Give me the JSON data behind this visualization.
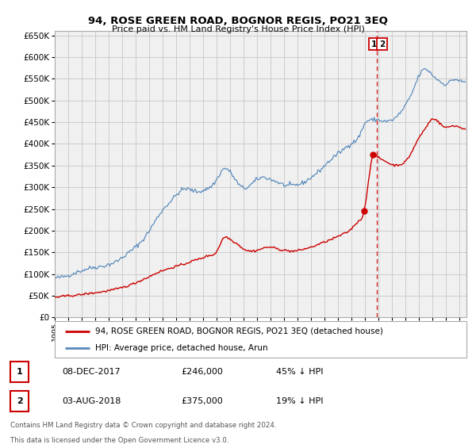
{
  "title": "94, ROSE GREEN ROAD, BOGNOR REGIS, PO21 3EQ",
  "subtitle": "Price paid vs. HM Land Registry's House Price Index (HPI)",
  "ylim": [
    0,
    660000
  ],
  "yticks": [
    0,
    50000,
    100000,
    150000,
    200000,
    250000,
    300000,
    350000,
    400000,
    450000,
    500000,
    550000,
    600000,
    650000
  ],
  "xlim_start": 1995.0,
  "xlim_end": 2025.5,
  "legend_line1": "94, ROSE GREEN ROAD, BOGNOR REGIS, PO21 3EQ (detached house)",
  "legend_line2": "HPI: Average price, detached house, Arun",
  "annotation1_label": "1",
  "annotation1_date": "08-DEC-2017",
  "annotation1_price": "£246,000",
  "annotation1_pct": "45% ↓ HPI",
  "annotation2_label": "2",
  "annotation2_date": "03-AUG-2018",
  "annotation2_price": "£375,000",
  "annotation2_pct": "19% ↓ HPI",
  "footnote1": "Contains HM Land Registry data © Crown copyright and database right 2024.",
  "footnote2": "This data is licensed under the Open Government Licence v3.0.",
  "red_color": "#cc0000",
  "blue_color": "#5588bb",
  "vline_color": "#cc0000",
  "grid_color": "#cccccc",
  "bg_color": "#ffffff",
  "plot_bg_color": "#f0f0f0",
  "sale1_x": 2017.92,
  "sale1_y": 246000,
  "sale2_x": 2018.58,
  "sale2_y": 375000,
  "vline_x": 2018.85
}
